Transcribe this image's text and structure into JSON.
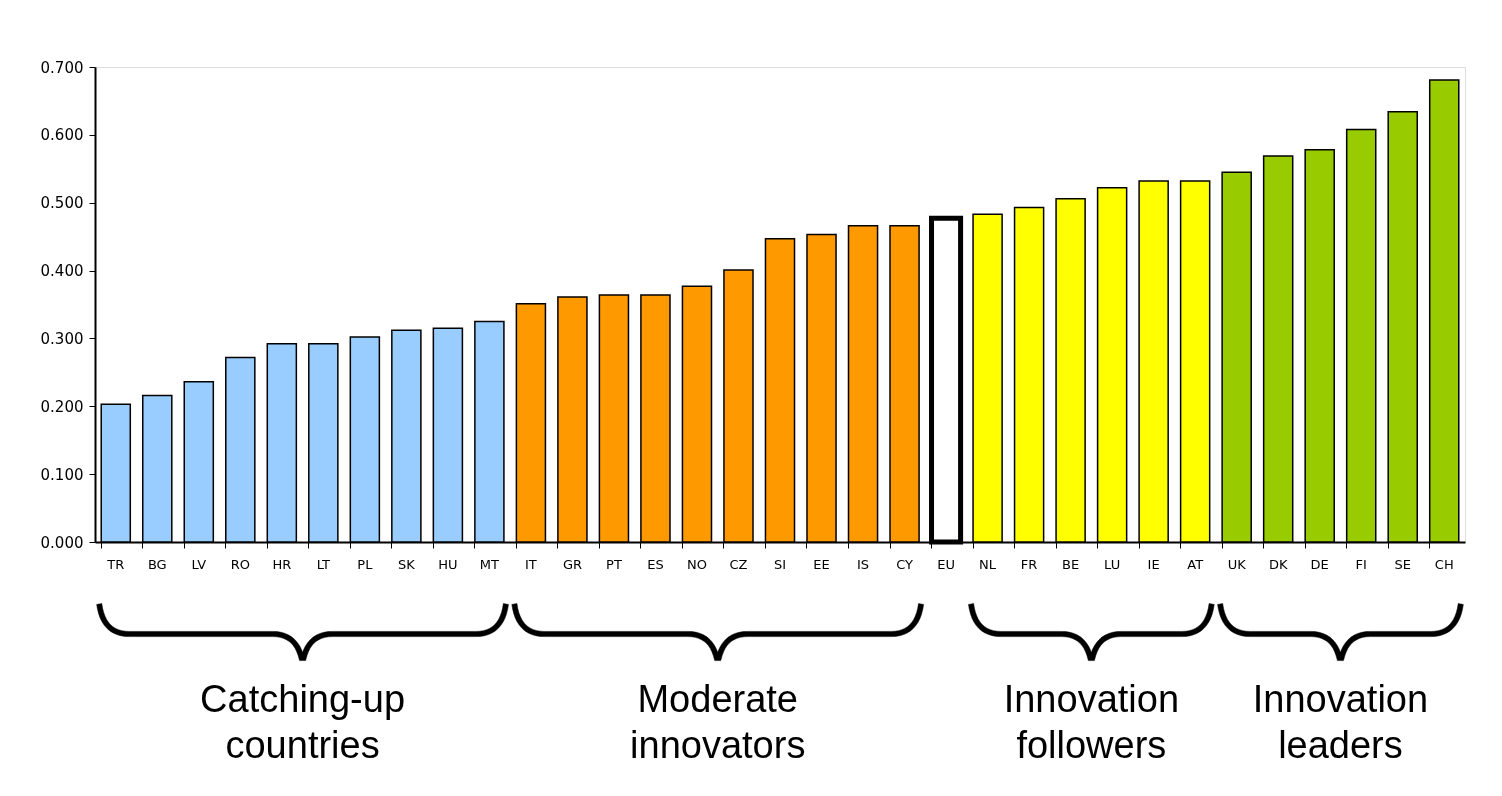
{
  "chart_data": {
    "type": "bar",
    "categories": [
      "TR",
      "BG",
      "LV",
      "RO",
      "HR",
      "LT",
      "PL",
      "SK",
      "HU",
      "MT",
      "IT",
      "GR",
      "PT",
      "ES",
      "NO",
      "CZ",
      "SI",
      "EE",
      "IS",
      "CY",
      "EU",
      "NL",
      "FR",
      "BE",
      "LU",
      "IE",
      "AT",
      "UK",
      "DK",
      "DE",
      "FI",
      "SE",
      "CH"
    ],
    "values": [
      0.203,
      0.216,
      0.236,
      0.272,
      0.292,
      0.292,
      0.302,
      0.312,
      0.315,
      0.325,
      0.351,
      0.361,
      0.364,
      0.364,
      0.377,
      0.401,
      0.447,
      0.453,
      0.466,
      0.466,
      0.477,
      0.483,
      0.493,
      0.506,
      0.522,
      0.532,
      0.532,
      0.545,
      0.569,
      0.578,
      0.608,
      0.634,
      0.681
    ],
    "colors": [
      "#99ccff",
      "#99ccff",
      "#99ccff",
      "#99ccff",
      "#99ccff",
      "#99ccff",
      "#99ccff",
      "#99ccff",
      "#99ccff",
      "#99ccff",
      "#ff9900",
      "#ff9900",
      "#ff9900",
      "#ff9900",
      "#ff9900",
      "#ff9900",
      "#ff9900",
      "#ff9900",
      "#ff9900",
      "#ff9900",
      "#ffffff",
      "#ffff00",
      "#ffff00",
      "#ffff00",
      "#ffff00",
      "#ffff00",
      "#ffff00",
      "#99cc00",
      "#99cc00",
      "#99cc00",
      "#99cc00",
      "#99cc00",
      "#99cc00"
    ],
    "ylim": [
      0,
      0.7
    ],
    "yticks": [
      {
        "value": 0,
        "label": "0.000"
      },
      {
        "value": 0.1,
        "label": "0.100"
      },
      {
        "value": 0.2,
        "label": "0.200"
      },
      {
        "value": 0.3,
        "label": "0.300"
      },
      {
        "value": 0.4,
        "label": "0.400"
      },
      {
        "value": 0.5,
        "label": "0.500"
      },
      {
        "value": 0.6,
        "label": "0.600"
      },
      {
        "value": 0.7,
        "label": "0.700"
      }
    ],
    "grid": false,
    "annotations": [
      "Catching-up countries",
      "Moderate innovators",
      "Innovation followers",
      "Innovation leaders"
    ]
  }
}
